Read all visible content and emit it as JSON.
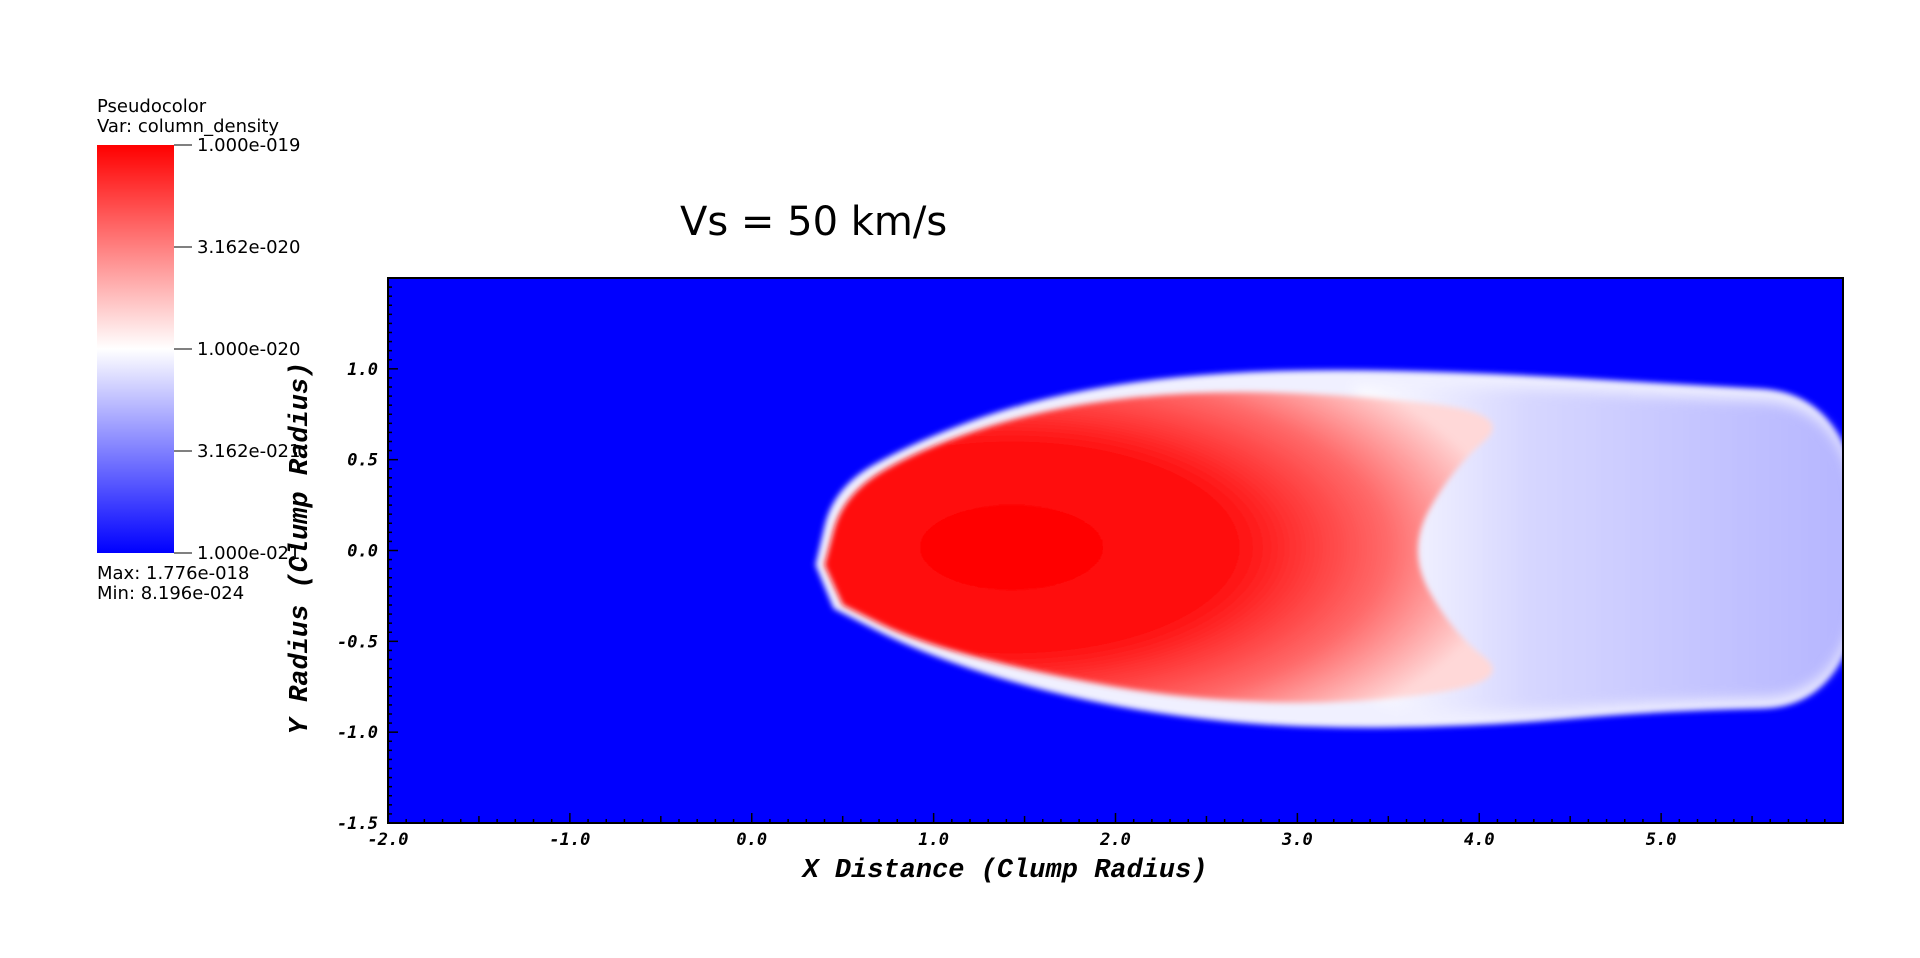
{
  "chart_data": {
    "type": "heatmap",
    "title": "Vs = 50 km/s",
    "xlabel": "X Distance (Clump Radius)",
    "ylabel": "Y Radius (Clump Radius)",
    "xlim": [
      -2.0,
      6.0
    ],
    "ylim": [
      -1.5,
      1.5
    ],
    "x_ticks": [
      {
        "value": -2.0,
        "label": "-2.0"
      },
      {
        "value": -1.0,
        "label": "-1.0"
      },
      {
        "value": 0.0,
        "label": "0.0"
      },
      {
        "value": 1.0,
        "label": "1.0"
      },
      {
        "value": 2.0,
        "label": "2.0"
      },
      {
        "value": 3.0,
        "label": "3.0"
      },
      {
        "value": 4.0,
        "label": "4.0"
      },
      {
        "value": 5.0,
        "label": "5.0"
      }
    ],
    "y_ticks": [
      {
        "value": -1.5,
        "label": "-1.5"
      },
      {
        "value": -1.0,
        "label": "-1.0"
      },
      {
        "value": -0.5,
        "label": "-0.5"
      },
      {
        "value": 0.0,
        "label": "0.0"
      },
      {
        "value": 0.5,
        "label": "0.5"
      },
      {
        "value": 1.0,
        "label": "1.0"
      }
    ],
    "variable": "column_density",
    "colormap": [
      "#0000ff",
      "#ffffff",
      "#ff0000"
    ],
    "color_scale": "log",
    "field_shape": {
      "head_x": 0.35,
      "head_y": -0.08,
      "half_width_max": 1.0,
      "red_core_end_x": 3.6,
      "white_transition_x": 3.6,
      "right_edge_half_width": 0.85
    },
    "legend": {
      "type_label": "Pseudocolor",
      "var_label": "Var: column_density",
      "ticks": [
        {
          "label": "1.000e-019",
          "level": 1.0
        },
        {
          "label": "3.162e-020",
          "level": 0.75
        },
        {
          "label": "1.000e-020",
          "level": 0.5
        },
        {
          "label": "3.162e-021",
          "level": 0.25
        },
        {
          "label": "1.000e-021",
          "level": 0.0
        }
      ],
      "max_label": "Max:  1.776e-018",
      "min_label": "Min:  8.196e-024"
    }
  }
}
